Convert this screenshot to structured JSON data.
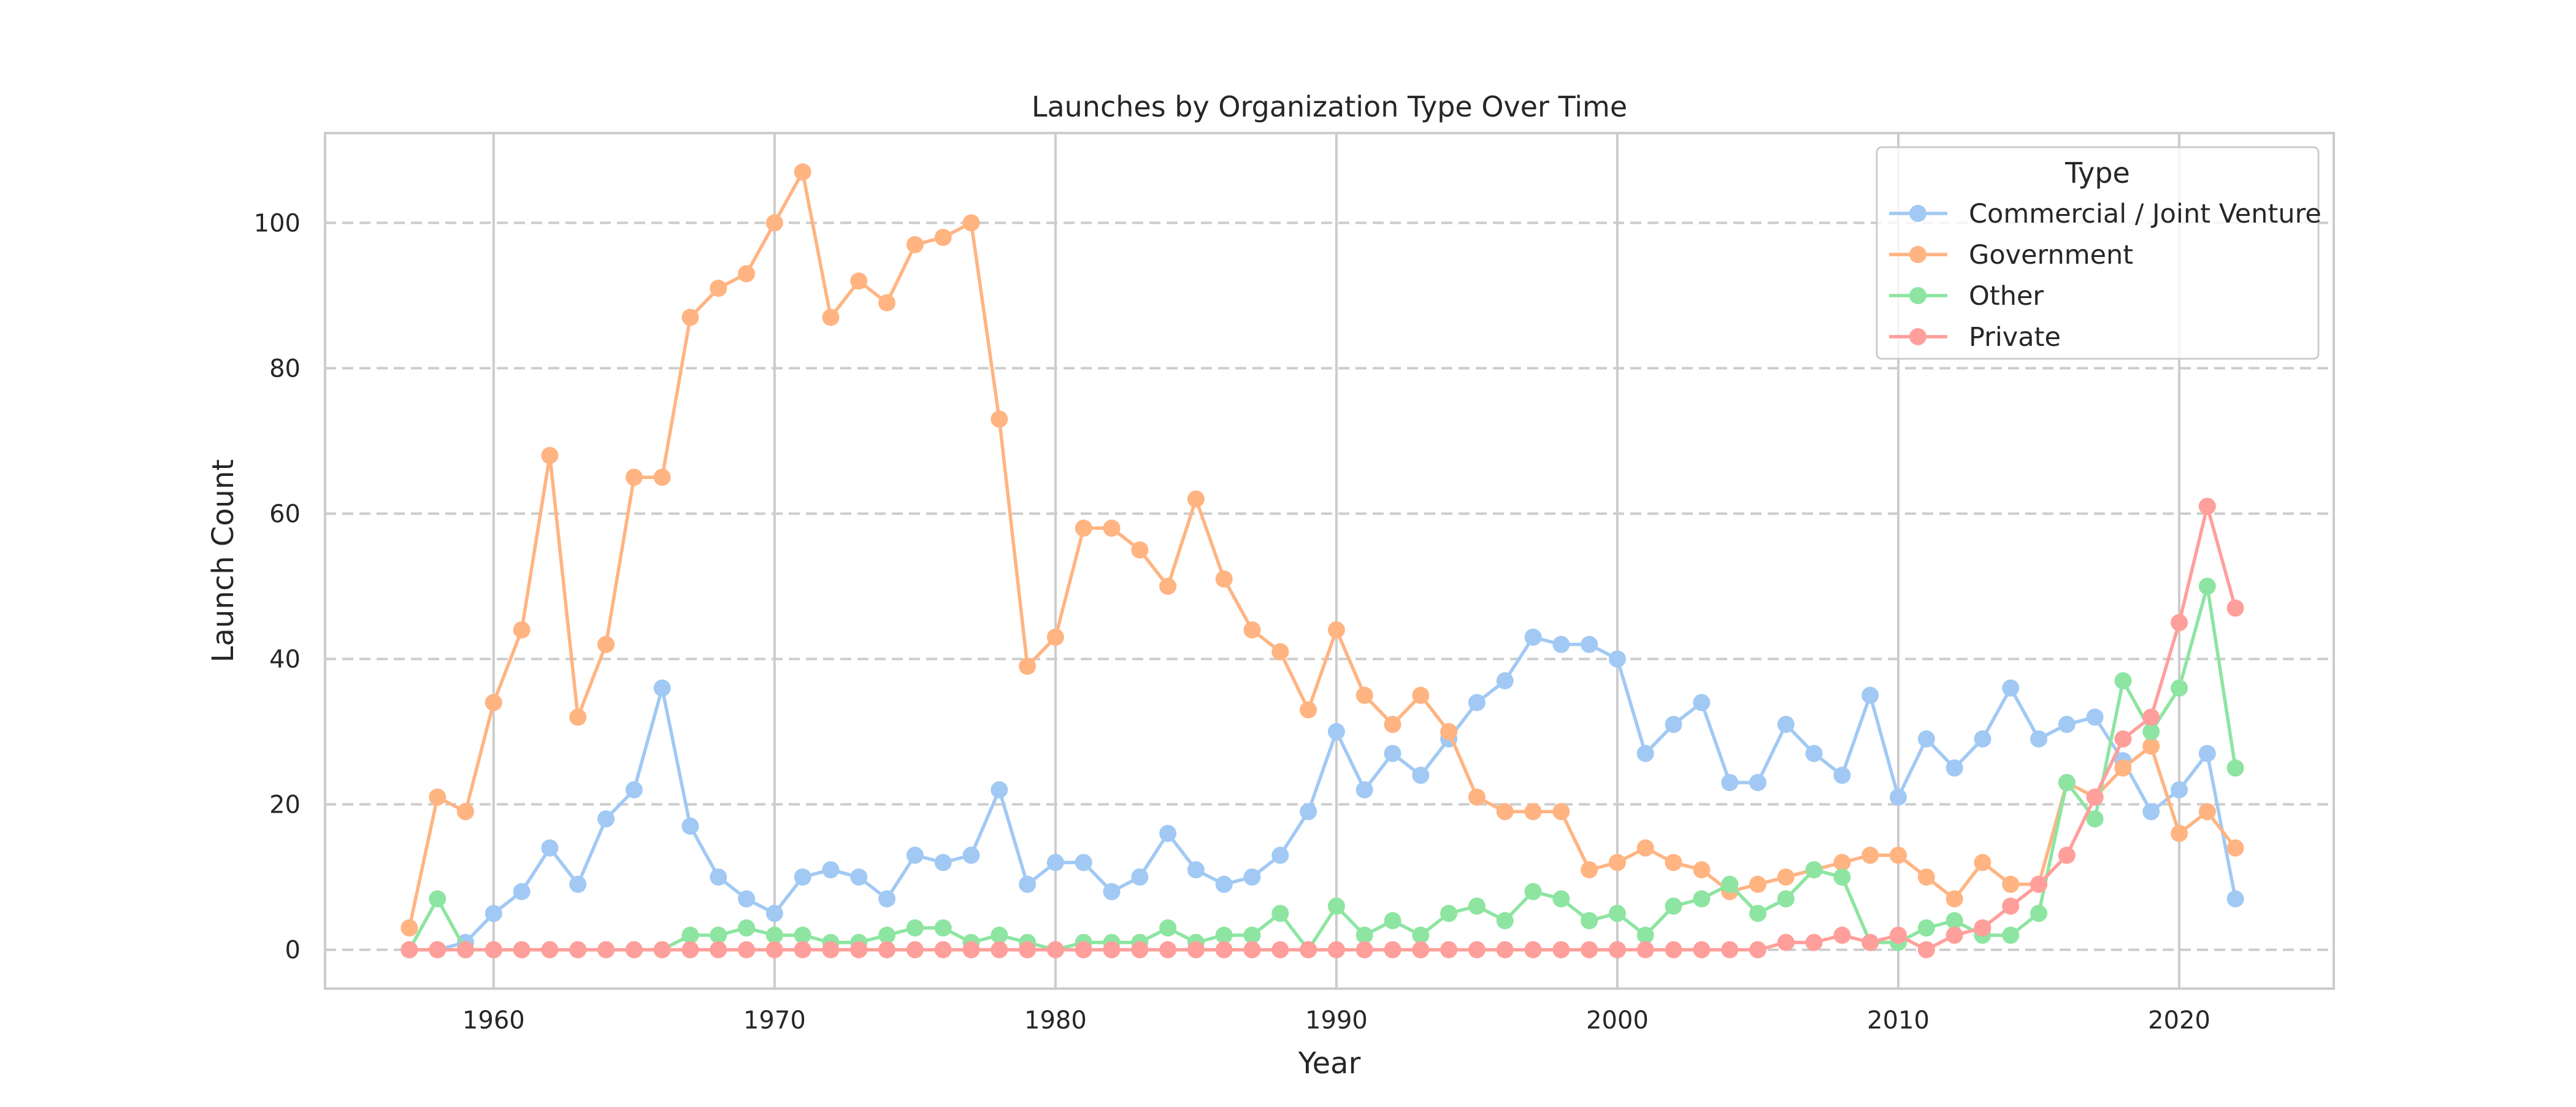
{
  "chart_data": {
    "type": "line",
    "title": "Launches by Organization Type Over Time",
    "xlabel": "Year",
    "ylabel": "Launch Count",
    "xlim": [
      1954,
      2025.5
    ],
    "ylim": [
      -5.35,
      112.35
    ],
    "xticks": [
      1960,
      1970,
      1980,
      1990,
      2000,
      2010,
      2020
    ],
    "yticks": [
      0,
      20,
      40,
      60,
      80,
      100
    ],
    "grid": {
      "x": "solid",
      "y": "dashed"
    },
    "legend": {
      "title": "Type",
      "placement": "top-right"
    },
    "x": [
      1957,
      1958,
      1959,
      1960,
      1961,
      1962,
      1963,
      1964,
      1965,
      1966,
      1967,
      1968,
      1969,
      1970,
      1971,
      1972,
      1973,
      1974,
      1975,
      1976,
      1977,
      1978,
      1979,
      1980,
      1981,
      1982,
      1983,
      1984,
      1985,
      1986,
      1987,
      1988,
      1989,
      1990,
      1991,
      1992,
      1993,
      1994,
      1995,
      1996,
      1997,
      1998,
      1999,
      2000,
      2001,
      2002,
      2003,
      2004,
      2005,
      2006,
      2007,
      2008,
      2009,
      2010,
      2011,
      2012,
      2013,
      2014,
      2015,
      2016,
      2017,
      2018,
      2019,
      2020,
      2021,
      2022
    ],
    "series": [
      {
        "name": "Commercial / Joint Venture",
        "color": "#a1c9f4",
        "values": [
          0,
          0,
          1,
          5,
          8,
          14,
          9,
          18,
          22,
          36,
          17,
          10,
          7,
          5,
          10,
          11,
          10,
          7,
          13,
          12,
          13,
          22,
          9,
          12,
          12,
          8,
          10,
          16,
          11,
          9,
          10,
          13,
          19,
          30,
          22,
          27,
          24,
          29,
          34,
          37,
          43,
          42,
          42,
          40,
          27,
          31,
          34,
          23,
          23,
          31,
          27,
          24,
          35,
          21,
          29,
          25,
          29,
          36,
          29,
          31,
          32,
          26,
          19,
          22,
          27,
          7
        ]
      },
      {
        "name": "Government",
        "color": "#ffb482",
        "values": [
          3,
          21,
          19,
          34,
          44,
          68,
          32,
          42,
          65,
          65,
          87,
          91,
          93,
          100,
          107,
          87,
          92,
          89,
          97,
          98,
          100,
          73,
          39,
          43,
          58,
          58,
          55,
          50,
          62,
          51,
          44,
          41,
          33,
          44,
          35,
          31,
          35,
          30,
          21,
          19,
          19,
          19,
          11,
          12,
          14,
          12,
          11,
          8,
          9,
          10,
          11,
          12,
          13,
          13,
          10,
          7,
          12,
          9,
          9,
          23,
          21,
          25,
          28,
          16,
          19,
          14
        ]
      },
      {
        "name": "Other",
        "color": "#8de5a1",
        "values": [
          0,
          7,
          0,
          0,
          0,
          0,
          0,
          0,
          0,
          0,
          2,
          2,
          3,
          2,
          2,
          1,
          1,
          2,
          3,
          3,
          1,
          2,
          1,
          0,
          1,
          1,
          1,
          3,
          1,
          2,
          2,
          5,
          0,
          6,
          2,
          4,
          2,
          5,
          6,
          4,
          8,
          7,
          4,
          5,
          2,
          6,
          7,
          9,
          5,
          7,
          11,
          10,
          1,
          1,
          3,
          4,
          2,
          2,
          5,
          23,
          18,
          37,
          30,
          36,
          50,
          25
        ]
      },
      {
        "name": "Private",
        "color": "#ff9f9b",
        "values": [
          0,
          0,
          0,
          0,
          0,
          0,
          0,
          0,
          0,
          0,
          0,
          0,
          0,
          0,
          0,
          0,
          0,
          0,
          0,
          0,
          0,
          0,
          0,
          0,
          0,
          0,
          0,
          0,
          0,
          0,
          0,
          0,
          0,
          0,
          0,
          0,
          0,
          0,
          0,
          0,
          0,
          0,
          0,
          0,
          0,
          0,
          0,
          0,
          0,
          1,
          1,
          2,
          1,
          2,
          0,
          2,
          3,
          6,
          9,
          13,
          21,
          29,
          32,
          45,
          61,
          47
        ]
      }
    ]
  }
}
